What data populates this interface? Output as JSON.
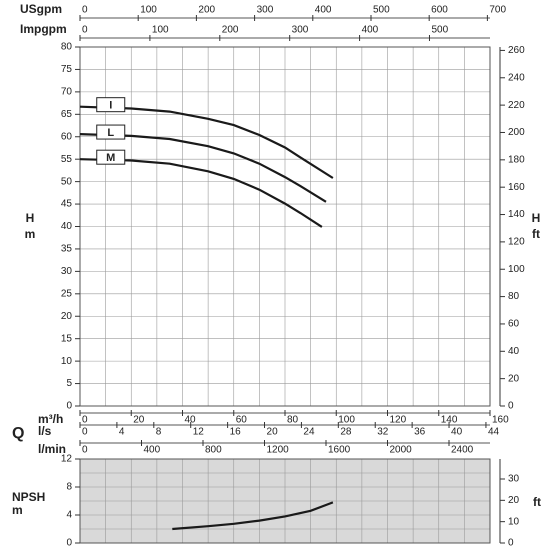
{
  "chart_data": [
    {
      "type": "line",
      "xlabel": "Q",
      "ylabel": "H",
      "yunit": "m",
      "y2label": "H",
      "y2unit": "ft",
      "ylim": [
        0,
        80
      ],
      "yticks": [
        0,
        5,
        10,
        15,
        20,
        25,
        30,
        35,
        40,
        45,
        50,
        55,
        60,
        65,
        70,
        75,
        80
      ],
      "y2lim": [
        0,
        262.5
      ],
      "y2ticks": [
        0,
        20,
        40,
        60,
        80,
        100,
        120,
        140,
        160,
        180,
        200,
        220,
        240,
        260
      ],
      "xgrid": [
        0,
        10,
        20,
        30,
        40,
        50,
        60,
        70,
        80,
        90,
        100,
        110,
        120,
        130,
        140,
        150,
        160
      ],
      "x_axes": [
        {
          "label": "USgpm",
          "xlim": [
            0,
            704.5
          ],
          "xticks": [
            0,
            100,
            200,
            300,
            400,
            500,
            600,
            700
          ]
        },
        {
          "label": "Impgpm",
          "xlim": [
            0,
            586.6
          ],
          "xticks": [
            0,
            100,
            200,
            300,
            400,
            500
          ]
        },
        {
          "label": "m³/h",
          "xlim": [
            0,
            160
          ],
          "xticks": [
            0,
            20,
            40,
            60,
            80,
            100,
            120,
            140,
            160
          ]
        },
        {
          "label": "l/s",
          "xlim": [
            0,
            44.44
          ],
          "xticks": [
            0,
            4,
            8,
            12,
            16,
            20,
            24,
            28,
            32,
            36,
            40,
            44
          ]
        },
        {
          "label": "l/min",
          "xlim": [
            0,
            2666.7
          ],
          "xticks": [
            0,
            400,
            800,
            1200,
            1600,
            2000,
            2400
          ]
        }
      ],
      "x": [
        0,
        20,
        35,
        50,
        60,
        70,
        80,
        86,
        96
      ],
      "series": [
        {
          "name": "I",
          "color": "#1a1a1a",
          "x": [
            0,
            20,
            35,
            50,
            60,
            70,
            80,
            86,
            98.7
          ],
          "values": [
            66.7,
            66.3,
            65.6,
            64.0,
            62.6,
            60.4,
            57.6,
            55.4,
            50.8
          ]
        },
        {
          "name": "L",
          "color": "#1a1a1a",
          "x": [
            0,
            20,
            35,
            50,
            60,
            70,
            80,
            86,
            96
          ],
          "values": [
            60.6,
            60.2,
            59.5,
            57.9,
            56.3,
            54.0,
            51.0,
            49.0,
            45.5
          ]
        },
        {
          "name": "M",
          "color": "#1a1a1a",
          "x": [
            0,
            20,
            35,
            50,
            60,
            70,
            80,
            86,
            94.4
          ],
          "values": [
            55.0,
            54.7,
            54.0,
            52.3,
            50.6,
            48.2,
            45.1,
            43.0,
            39.9
          ]
        }
      ]
    },
    {
      "type": "line",
      "ylabel": "NPSH",
      "yunit": "m",
      "y2unit": "ft",
      "xlim": [
        0,
        160
      ],
      "ylim": [
        0,
        12
      ],
      "yticks": [
        0,
        4,
        8,
        12
      ],
      "ygrid": [
        0,
        2,
        4,
        6,
        8,
        10,
        12
      ],
      "y2lim": [
        0,
        39.37
      ],
      "y2ticks": [
        0,
        10,
        20,
        30
      ],
      "xgrid": [
        0,
        10,
        20,
        30,
        40,
        50,
        60,
        70,
        80,
        90,
        100,
        110,
        120,
        130,
        140,
        150,
        160
      ],
      "background": "#d9d9d9",
      "series": [
        {
          "color": "#1a1a1a",
          "x": [
            36,
            50,
            60,
            70,
            80,
            90,
            98.7
          ],
          "values": [
            2.0,
            2.4,
            2.75,
            3.2,
            3.8,
            4.6,
            5.8
          ]
        }
      ]
    }
  ]
}
